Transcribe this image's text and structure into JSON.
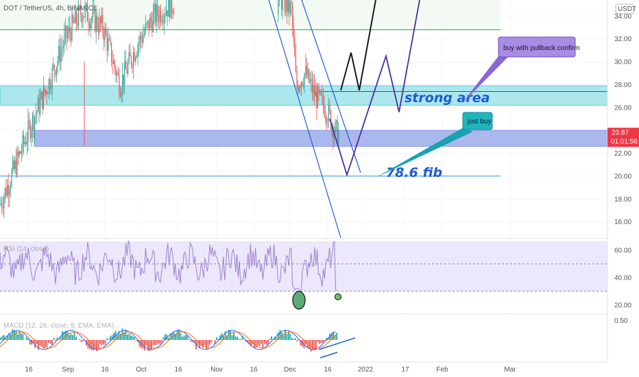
{
  "symbol_label": "DOT / TetherUS, 4h, BINANCE",
  "currency_badge": "USDT",
  "price_tag": {
    "price": "23.87",
    "countdown": "01:01:56",
    "color": "#f23645"
  },
  "rsi_label": "RSI (14, close)",
  "macd_label": "MACD (12, 26, close, 9, EMA, EMA)",
  "chart_data": {
    "type": "line",
    "title": "DOT / TetherUS, 4h, BINANCE",
    "price_axis": {
      "ticks": [
        "34.00",
        "32.00",
        "30.00",
        "28.00",
        "26.00",
        "24.00",
        "22.00",
        "20.00",
        "18.00",
        "16.00"
      ],
      "ylim": [
        14.6,
        35.4
      ]
    },
    "rsi_axis": {
      "ticks": [
        "60.00",
        "40.00",
        "20.00"
      ]
    },
    "macd_axis": {
      "ticks": [
        "0.50"
      ]
    },
    "time_axis": {
      "ticks": [
        "16",
        "Sep",
        "16",
        "Oct",
        "16",
        "Nov",
        "16",
        "Dec",
        "16",
        "2022",
        "17",
        "Feb",
        "Mar"
      ]
    },
    "current_price": 23.87,
    "levels": [
      {
        "name": "resistance",
        "value": 32.8,
        "color": "#22a53b"
      },
      {
        "name": "strong-area",
        "low": 26.2,
        "high": 27.9,
        "color": "#1fbfd0"
      },
      {
        "name": "buy-zone",
        "low": 22.6,
        "high": 24.0,
        "color": "#6e7fe0"
      },
      {
        "name": "fib-78.6",
        "value": 20.0,
        "color": "#2b8fd8"
      }
    ],
    "projection_black": [
      27.5,
      30.8,
      27.5,
      35.4
    ],
    "projection_purple": [
      25.0,
      20.1,
      30.5,
      25.6,
      35.4
    ],
    "annotations": {
      "strong_area": "strong area",
      "fib": "78.6 fib",
      "just_buy": "just buy",
      "pullback": "buy with pullback confirm"
    },
    "rsi_levels": {
      "upper": 50,
      "lower": 30
    },
    "colors": {
      "candle_up": "#26a69a",
      "candle_down": "#ef5350",
      "rsi_line": "#9c7fd1",
      "rsi_band": "#ede7fb",
      "macd_line": "#2962ff",
      "signal_line": "#ff6d00"
    }
  }
}
